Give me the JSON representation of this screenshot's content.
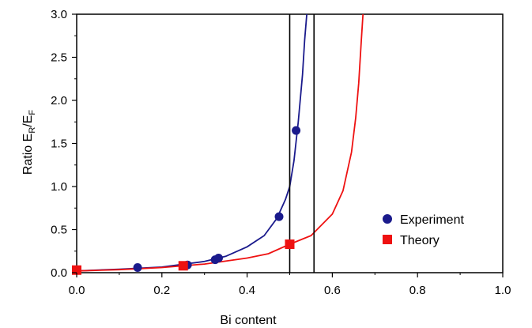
{
  "chart_data": {
    "type": "scatter",
    "xlabel": "Bi content",
    "ylabel": {
      "prefix": "Ratio E",
      "sub1": "R",
      "mid": "/E",
      "sub2": "F"
    },
    "xlim": [
      0.0,
      1.0
    ],
    "ylim": [
      0.0,
      3.0
    ],
    "x_ticks": [
      "0.0",
      "0.2",
      "0.4",
      "0.6",
      "0.8",
      "1.0"
    ],
    "y_ticks": [
      "0.0",
      "0.5",
      "1.0",
      "1.5",
      "2.0",
      "2.5",
      "3.0"
    ],
    "grid": false,
    "legend_position": "bottom-right",
    "vertical_lines": [
      0.5,
      0.557
    ],
    "series": [
      {
        "name": "Experiment",
        "marker": "circle",
        "color": "#1a1a8c",
        "points": [
          {
            "x": 0.143,
            "y": 0.06
          },
          {
            "x": 0.26,
            "y": 0.09
          },
          {
            "x": 0.325,
            "y": 0.15
          },
          {
            "x": 0.333,
            "y": 0.17
          },
          {
            "x": 0.475,
            "y": 0.65
          },
          {
            "x": 0.515,
            "y": 1.65
          }
        ]
      },
      {
        "name": "Theory",
        "marker": "square",
        "color": "#ee1111",
        "points": [
          {
            "x": 0.0,
            "y": 0.03
          },
          {
            "x": 0.25,
            "y": 0.08
          },
          {
            "x": 0.5,
            "y": 0.33
          }
        ]
      }
    ],
    "fit_curves": [
      {
        "color": "#1a1a8c",
        "points": [
          [
            0.0,
            0.02
          ],
          [
            0.1,
            0.04
          ],
          [
            0.2,
            0.065
          ],
          [
            0.3,
            0.13
          ],
          [
            0.35,
            0.19
          ],
          [
            0.4,
            0.3
          ],
          [
            0.44,
            0.43
          ],
          [
            0.47,
            0.63
          ],
          [
            0.49,
            0.85
          ],
          [
            0.5,
            1.0
          ],
          [
            0.51,
            1.3
          ],
          [
            0.52,
            1.75
          ],
          [
            0.53,
            2.3
          ],
          [
            0.535,
            2.7
          ],
          [
            0.54,
            3.0
          ]
        ]
      },
      {
        "color": "#ee1111",
        "points": [
          [
            0.0,
            0.02
          ],
          [
            0.1,
            0.035
          ],
          [
            0.2,
            0.06
          ],
          [
            0.3,
            0.1
          ],
          [
            0.4,
            0.17
          ],
          [
            0.45,
            0.22
          ],
          [
            0.5,
            0.33
          ],
          [
            0.55,
            0.43
          ],
          [
            0.6,
            0.68
          ],
          [
            0.625,
            0.95
          ],
          [
            0.645,
            1.4
          ],
          [
            0.655,
            1.8
          ],
          [
            0.662,
            2.2
          ],
          [
            0.668,
            2.7
          ],
          [
            0.672,
            3.0
          ]
        ]
      }
    ]
  }
}
